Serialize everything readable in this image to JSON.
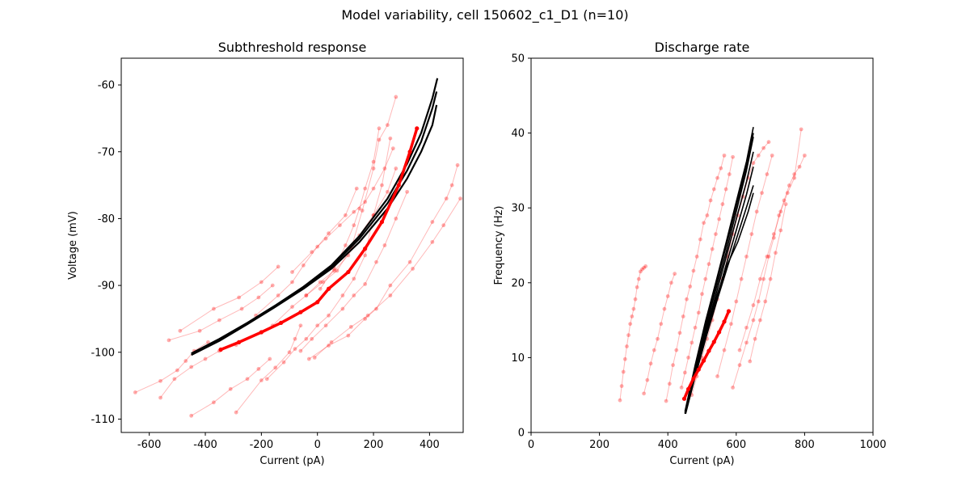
{
  "figure": {
    "title": "Model variability, cell 150602_c1_D1 (n=10)"
  },
  "chart_data": [
    {
      "type": "line",
      "title": "Subthreshold response",
      "xlabel": "Current (pA)",
      "ylabel": "Voltage (mV)",
      "xlim": [
        -700,
        520
      ],
      "ylim": [
        -112,
        -56
      ],
      "xticks": [
        "-600",
        "-400",
        "-200",
        "0",
        "200",
        "400"
      ],
      "xtick_values": [
        -600,
        -400,
        -200,
        0,
        200,
        400
      ],
      "yticks": [
        "-60",
        "-70",
        "-80",
        "-90",
        "-100",
        "-110"
      ],
      "ytick_values": [
        -60,
        -70,
        -80,
        -90,
        -100,
        -110
      ],
      "grid": false,
      "series": [
        {
          "role": "experiment-faint",
          "color": "#ff0000",
          "x": [
            -650,
            -560,
            -500,
            -470,
            -440,
            -390
          ],
          "y": [
            -106,
            -104.3,
            -102.7,
            -101.3,
            -99.8,
            -98.5
          ]
        },
        {
          "role": "experiment-faint",
          "color": "#ff0000",
          "x": [
            -560,
            -510,
            -450,
            -400,
            -350,
            -290
          ],
          "y": [
            -106.8,
            -104,
            -102.2,
            -101,
            -99.8,
            -98.9
          ]
        },
        {
          "role": "experiment-faint",
          "color": "#ff0000",
          "x": [
            -450,
            -370,
            -310,
            -250,
            -210,
            -170
          ],
          "y": [
            -109.5,
            -107.5,
            -105.5,
            -104,
            -102.5,
            -101
          ]
        },
        {
          "role": "experiment-faint",
          "color": "#ff0000",
          "x": [
            -290,
            -200,
            -150,
            -100,
            -80,
            -60
          ],
          "y": [
            -109,
            -104.2,
            -102.3,
            -100,
            -98,
            -96
          ]
        },
        {
          "role": "experiment-faint",
          "color": "#ff0000",
          "x": [
            -530,
            -420,
            -350,
            -270,
            -210,
            -160
          ],
          "y": [
            -98.2,
            -96.8,
            -95.2,
            -93.5,
            -91.8,
            -90
          ]
        },
        {
          "role": "experiment-faint",
          "color": "#ff0000",
          "x": [
            -490,
            -370,
            -280,
            -200,
            -140
          ],
          "y": [
            -96.8,
            -93.5,
            -91.8,
            -89.5,
            -87.2
          ]
        },
        {
          "role": "experiment-faint",
          "color": "#ff0000",
          "x": [
            -220,
            -140,
            -90,
            -50,
            0,
            40,
            100,
            140
          ],
          "y": [
            -94.5,
            -91.5,
            -89.5,
            -87,
            -84.2,
            -82.2,
            -79.5,
            -75.5
          ]
        },
        {
          "role": "experiment-faint",
          "color": "#ff0000",
          "x": [
            -160,
            -90,
            -40,
            10,
            60,
            110,
            150,
            200,
            250,
            280
          ],
          "y": [
            -96,
            -93.2,
            -91.5,
            -89.5,
            -87.8,
            -85.5,
            -82.5,
            -79.5,
            -76,
            -72.5
          ]
        },
        {
          "role": "experiment-faint",
          "color": "#ff0000",
          "x": [
            -90,
            -20,
            30,
            80,
            130,
            170,
            200,
            240,
            270
          ],
          "y": [
            -88,
            -85,
            -83,
            -81,
            -79,
            -77.5,
            -75.5,
            -72.5,
            -69.5
          ]
        },
        {
          "role": "experiment-faint",
          "color": "#ff0000",
          "x": [
            -60,
            -20,
            30,
            90,
            130,
            170,
            210,
            240,
            280,
            320
          ],
          "y": [
            -99.8,
            -98,
            -96,
            -93.5,
            -91.5,
            -89.8,
            -86.5,
            -84,
            -80,
            -76
          ]
        },
        {
          "role": "experiment-faint",
          "color": "#ff0000",
          "x": [
            -10,
            50,
            120,
            180,
            260,
            340,
            410,
            450,
            510
          ],
          "y": [
            -100.8,
            -98.5,
            -96.2,
            -94.5,
            -91.5,
            -87.5,
            -83.5,
            -81,
            -77
          ]
        },
        {
          "role": "experiment-faint",
          "color": "#ff0000",
          "x": [
            -30,
            40,
            110,
            170,
            210,
            260,
            330,
            410,
            460,
            480,
            500
          ],
          "y": [
            -101,
            -99,
            -97.5,
            -95,
            -93.5,
            -90,
            -86.5,
            -80.5,
            -77,
            -75,
            -72
          ]
        },
        {
          "role": "experiment-faint",
          "color": "#ff0000",
          "x": [
            -180,
            -120,
            -80,
            -40,
            0,
            40,
            90,
            130,
            170,
            200,
            230,
            260
          ],
          "y": [
            -104,
            -101.5,
            -99.5,
            -98,
            -96,
            -94.5,
            -91.5,
            -89,
            -85.5,
            -79.5,
            -75,
            -68
          ]
        },
        {
          "role": "experiment-faint",
          "color": "#ff0000",
          "x": [
            -40,
            20,
            70,
            120,
            160,
            200,
            220,
            250,
            280
          ],
          "y": [
            -91.5,
            -89.5,
            -87.8,
            -84.5,
            -78.8,
            -72.5,
            -68.2,
            -66,
            -61.8
          ]
        },
        {
          "role": "experiment-faint",
          "color": "#ff0000",
          "x": [
            10,
            60,
            100,
            130,
            150,
            170,
            200,
            220
          ],
          "y": [
            -90.5,
            -87.5,
            -84,
            -81,
            -78.5,
            -75.5,
            -71.5,
            -66.5
          ]
        },
        {
          "role": "model",
          "color": "#000000",
          "x": [
            -450,
            -350,
            -250,
            -150,
            -50,
            50,
            150,
            250,
            320,
            370,
            410,
            425
          ],
          "y": [
            -100.2,
            -98,
            -95.6,
            -93,
            -90.3,
            -87.2,
            -83,
            -77.7,
            -72.8,
            -68.5,
            -63.5,
            -61
          ]
        },
        {
          "role": "model",
          "color": "#000000",
          "x": [
            -450,
            -350,
            -250,
            -150,
            -50,
            50,
            150,
            250,
            320,
            370,
            410,
            428
          ],
          "y": [
            -100.2,
            -98,
            -95.6,
            -93,
            -90.2,
            -87,
            -82.6,
            -77,
            -71.8,
            -67.2,
            -62,
            -59
          ]
        },
        {
          "role": "model",
          "color": "#000000",
          "x": [
            -450,
            -350,
            -250,
            -150,
            -50,
            50,
            150,
            250,
            320,
            370,
            410,
            425
          ],
          "y": [
            -100.4,
            -98.3,
            -95.8,
            -93.2,
            -90.5,
            -87.5,
            -83.5,
            -78.5,
            -74,
            -70,
            -66,
            -63
          ]
        },
        {
          "role": "experiment-mean",
          "color": "#ff0000",
          "x": [
            -345,
            -280,
            -200,
            -130,
            -60,
            0,
            40,
            110,
            170,
            230,
            290,
            330,
            355
          ],
          "y": [
            -99.6,
            -98.5,
            -97,
            -95.6,
            -94,
            -92.5,
            -90.5,
            -88,
            -84.5,
            -80.5,
            -75,
            -70,
            -66.5
          ]
        }
      ]
    },
    {
      "type": "line",
      "title": "Discharge rate",
      "xlabel": "Current (pA)",
      "ylabel": "Frequency (Hz)",
      "xlim": [
        0,
        1000
      ],
      "ylim": [
        0,
        50
      ],
      "xticks": [
        "0",
        "200",
        "400",
        "600",
        "800",
        "1000"
      ],
      "xtick_values": [
        0,
        200,
        400,
        600,
        800,
        1000
      ],
      "yticks": [
        "0",
        "10",
        "20",
        "30",
        "40",
        "50"
      ],
      "ytick_values": [
        0,
        10,
        20,
        30,
        40,
        50
      ],
      "grid": false,
      "series": [
        {
          "role": "experiment-faint",
          "color": "#ff0000",
          "x": [
            260,
            265,
            270,
            275,
            280,
            285,
            290,
            295,
            300,
            305,
            310,
            315,
            320,
            325,
            330,
            335
          ],
          "y": [
            4.3,
            6.2,
            8.1,
            9.8,
            11.5,
            13,
            14.5,
            15.5,
            16.5,
            17.8,
            19.4,
            20.5,
            21.5,
            21.8,
            22,
            22.2
          ]
        },
        {
          "role": "experiment-faint",
          "color": "#ff0000",
          "x": [
            330,
            340,
            350,
            360,
            370,
            380,
            390,
            400,
            410,
            420
          ],
          "y": [
            5.2,
            7,
            9.2,
            11,
            12.5,
            14.5,
            16.5,
            18.2,
            20,
            21.2
          ]
        },
        {
          "role": "experiment-faint",
          "color": "#ff0000",
          "x": [
            395,
            405,
            415,
            425,
            435,
            445,
            455,
            465,
            475,
            485,
            495,
            505,
            515,
            525,
            535,
            545,
            555,
            565
          ],
          "y": [
            4.2,
            6.5,
            9,
            11,
            13.3,
            15.5,
            17.8,
            19.5,
            21.6,
            23.5,
            25.8,
            28,
            29,
            31,
            32.5,
            34,
            35.3,
            37
          ]
        },
        {
          "role": "experiment-faint",
          "color": "#ff0000",
          "x": [
            440,
            450,
            460,
            470,
            480,
            490,
            500,
            510,
            520,
            530,
            540,
            550,
            560,
            570,
            580,
            590
          ],
          "y": [
            6,
            8,
            10,
            12,
            14,
            16,
            18.5,
            20.5,
            22.5,
            24.5,
            26.5,
            28.5,
            30.5,
            32.5,
            34.5,
            36.8
          ]
        },
        {
          "role": "experiment-faint",
          "color": "#ff0000",
          "x": [
            470,
            485,
            500,
            515,
            530,
            545,
            560,
            575,
            590,
            605,
            620,
            635,
            650,
            665,
            680,
            695
          ],
          "y": [
            5,
            7.5,
            10,
            12.5,
            15,
            17.8,
            20.5,
            23.5,
            26.5,
            29,
            31.5,
            34,
            36,
            37,
            38,
            38.8
          ]
        },
        {
          "role": "experiment-faint",
          "color": "#ff0000",
          "x": [
            545,
            565,
            585,
            600,
            615,
            630,
            645,
            660,
            675,
            690,
            705
          ],
          "y": [
            7.5,
            11,
            14.5,
            17.5,
            20.5,
            23.5,
            26.5,
            29.5,
            32,
            34.5,
            37
          ]
        },
        {
          "role": "experiment-faint",
          "color": "#ff0000",
          "x": [
            590,
            610,
            630,
            650,
            665,
            680,
            695,
            710,
            725,
            740,
            755,
            770,
            785,
            800
          ],
          "y": [
            6,
            9,
            12,
            15,
            17.5,
            20.5,
            23.5,
            26,
            29,
            31,
            33,
            34.5,
            35.5,
            37
          ]
        },
        {
          "role": "experiment-faint",
          "color": "#ff0000",
          "x": [
            610,
            630,
            650,
            670,
            690,
            710,
            730,
            750,
            770,
            790
          ],
          "y": [
            11,
            14,
            17,
            20.5,
            23.5,
            26.5,
            29.5,
            32,
            34,
            40.5
          ]
        },
        {
          "role": "experiment-faint",
          "color": "#ff0000",
          "x": [
            640,
            655,
            670,
            685,
            700,
            715,
            730,
            745
          ],
          "y": [
            9.5,
            12.5,
            15,
            17.5,
            20.5,
            24,
            27,
            30.5
          ]
        },
        {
          "role": "model",
          "color": "#000000",
          "x": [
            450,
            480,
            510,
            540,
            570,
            600,
            630,
            650
          ],
          "y": [
            2.5,
            8.5,
            14,
            19,
            24,
            29.5,
            35,
            39.5
          ]
        },
        {
          "role": "model",
          "color": "#000000",
          "x": [
            450,
            480,
            510,
            540,
            570,
            600,
            630,
            650
          ],
          "y": [
            2.8,
            9,
            14.8,
            20,
            25.3,
            30.8,
            36.2,
            40.8
          ]
        },
        {
          "role": "model",
          "color": "#000000",
          "x": [
            452,
            480,
            510,
            540,
            570,
            600,
            630,
            650
          ],
          "y": [
            3,
            8.2,
            13.5,
            18.3,
            23.3,
            28.5,
            33.5,
            37.5
          ]
        },
        {
          "role": "model",
          "color": "#000000",
          "x": [
            452,
            480,
            510,
            540,
            570,
            600,
            630,
            650
          ],
          "y": [
            2.5,
            7.5,
            12.8,
            17.5,
            22.3,
            27,
            31.8,
            35.5
          ]
        },
        {
          "role": "model",
          "color": "#000000",
          "x": [
            455,
            485,
            515,
            545,
            575,
            605,
            635,
            650
          ],
          "y": [
            3.2,
            8.3,
            13.2,
            17.8,
            22.2,
            26.5,
            30.8,
            33
          ]
        },
        {
          "role": "model",
          "color": "#000000",
          "x": [
            455,
            485,
            515,
            545,
            575,
            605,
            635,
            650
          ],
          "y": [
            3.5,
            8.8,
            14,
            18.5,
            22.5,
            25.5,
            29.5,
            32
          ]
        },
        {
          "role": "model",
          "color": "#000000",
          "x": [
            450,
            480,
            510,
            540,
            570,
            600,
            630,
            650
          ],
          "y": [
            2.6,
            8.7,
            14.4,
            19.6,
            24.8,
            30.2,
            35.6,
            40
          ]
        },
        {
          "role": "experiment-mean",
          "color": "#ff0000",
          "x": [
            448,
            460,
            475,
            490,
            505,
            520,
            535,
            550,
            565,
            578
          ],
          "y": [
            4.5,
            5.8,
            7.2,
            8.4,
            9.6,
            10.9,
            12.1,
            13.4,
            14.8,
            16.2
          ]
        }
      ]
    }
  ]
}
